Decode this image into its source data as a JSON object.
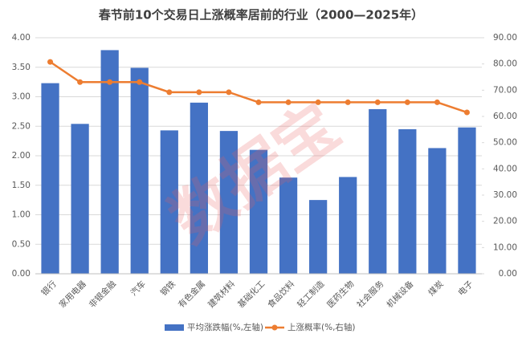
{
  "chart_data": {
    "type": "bar_line",
    "title": "春节前10个交易日上涨概率居前的行业（2000—2025年）",
    "watermark": "数据宝",
    "categories": [
      "银行",
      "家用电器",
      "非银金融",
      "汽车",
      "钢铁",
      "有色金属",
      "建筑材料",
      "基础化工",
      "食品饮料",
      "轻工制造",
      "医药生物",
      "社会服务",
      "机械设备",
      "煤炭",
      "电子"
    ],
    "series": [
      {
        "name": "平均涨跌幅(%,左轴)",
        "type": "bar",
        "color": "#4472c4",
        "values": [
          3.23,
          2.54,
          3.79,
          3.49,
          2.43,
          2.9,
          2.42,
          2.1,
          1.63,
          1.25,
          1.64,
          2.79,
          2.45,
          2.13,
          2.48
        ]
      },
      {
        "name": "上涨概率(%,右轴)",
        "type": "line",
        "axis": "y2",
        "color": "#ed7d31",
        "values": [
          80.77,
          73.08,
          73.08,
          73.08,
          69.23,
          69.23,
          69.23,
          65.38,
          65.38,
          65.38,
          65.38,
          65.38,
          65.38,
          65.38,
          61.54
        ]
      }
    ],
    "ylim": [
      0,
      4
    ],
    "yticks": [
      {
        "value": 0,
        "label": "0.00"
      },
      {
        "value": 0.5,
        "label": "0.50"
      },
      {
        "value": 1,
        "label": "1.00"
      },
      {
        "value": 1.5,
        "label": "1.50"
      },
      {
        "value": 2,
        "label": "2.00"
      },
      {
        "value": 2.5,
        "label": "2.50"
      },
      {
        "value": 3,
        "label": "3.00"
      },
      {
        "value": 3.5,
        "label": "3.50"
      },
      {
        "value": 4,
        "label": "4.00"
      }
    ],
    "y2lim": [
      0,
      90
    ],
    "y2ticks": [
      {
        "value": 0,
        "label": "0.00"
      },
      {
        "value": 10,
        "label": "10.00"
      },
      {
        "value": 20,
        "label": "20.00"
      },
      {
        "value": 30,
        "label": "30.00"
      },
      {
        "value": 40,
        "label": "40.00"
      },
      {
        "value": 50,
        "label": "50.00"
      },
      {
        "value": 60,
        "label": "60.00"
      },
      {
        "value": 70,
        "label": "70.00"
      },
      {
        "value": 80,
        "label": "80.00"
      },
      {
        "value": 90,
        "label": "90.00"
      }
    ],
    "grid": true
  }
}
